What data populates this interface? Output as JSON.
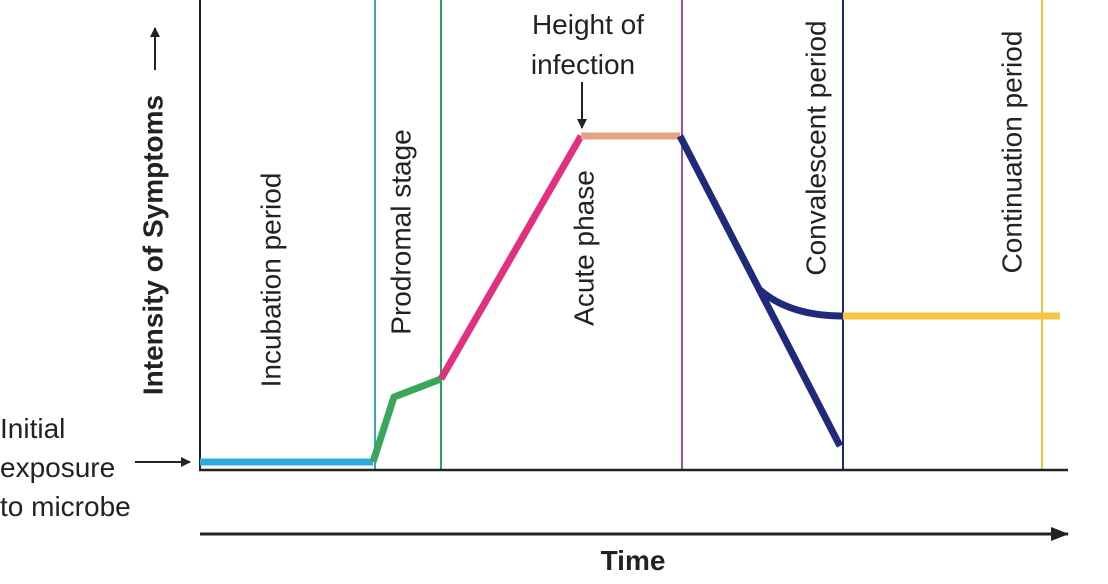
{
  "axes": {
    "y_label": "Intensity of Symptoms",
    "x_label": "Time"
  },
  "annotations": {
    "initial_exposure": [
      "Initial",
      "exposure",
      "to microbe"
    ],
    "height_of_infection": [
      "Height of",
      "infection"
    ]
  },
  "stages": {
    "incubation": "Incubation period",
    "prodromal": "Prodromal stage",
    "acute": "Acute phase",
    "convalescent": "Convalescent period",
    "continuation": "Continuation period"
  }
}
